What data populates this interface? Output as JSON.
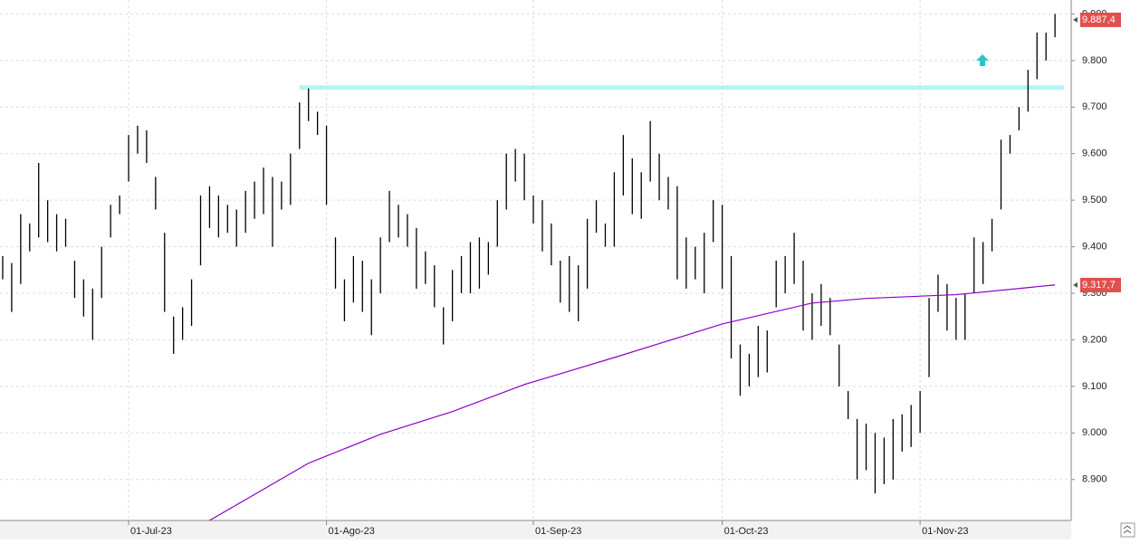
{
  "chart_data": {
    "type": "ohlc",
    "color": "#000000",
    "grid": true,
    "high": [
      9380,
      9365,
      9470,
      9450,
      9580,
      9500,
      9470,
      9460,
      9370,
      9330,
      9310,
      9400,
      9490,
      9510,
      9640,
      9660,
      9650,
      9550,
      9430,
      9250,
      9270,
      9330,
      9510,
      9530,
      9510,
      9490,
      9480,
      9520,
      9540,
      9570,
      9550,
      9540,
      9600,
      9710,
      9740,
      9690,
      9660,
      9420,
      9330,
      9380,
      9370,
      9330,
      9420,
      9520,
      9490,
      9470,
      9440,
      9390,
      9360,
      9270,
      9350,
      9380,
      9410,
      9420,
      9410,
      9500,
      9600,
      9610,
      9600,
      9510,
      9500,
      9450,
      9370,
      9380,
      9360,
      9460,
      9500,
      9450,
      9560,
      9640,
      9590,
      9560,
      9670,
      9600,
      9550,
      9530,
      9420,
      9400,
      9430,
      9500,
      9490,
      9380,
      9190,
      9170,
      9230,
      9220,
      9370,
      9380,
      9430,
      9370,
      9300,
      9320,
      9290,
      9190,
      9090,
      9030,
      9020,
      9000,
      8990,
      9030,
      9040,
      9060,
      9090,
      9290,
      9340,
      9320,
      9290,
      9300,
      9420,
      9410,
      9460,
      9630,
      9640,
      9700,
      9780,
      9860,
      9860,
      9900
    ],
    "low": [
      9330,
      9260,
      9320,
      9390,
      9420,
      9410,
      9390,
      9400,
      9290,
      9250,
      9200,
      9290,
      9420,
      9470,
      9540,
      9600,
      9580,
      9480,
      9260,
      9170,
      9200,
      9230,
      9360,
      9440,
      9420,
      9430,
      9400,
      9430,
      9460,
      9470,
      9400,
      9480,
      9490,
      9610,
      9670,
      9640,
      9490,
      9310,
      9240,
      9280,
      9260,
      9210,
      9300,
      9410,
      9420,
      9400,
      9310,
      9320,
      9270,
      9190,
      9240,
      9300,
      9300,
      9310,
      9340,
      9400,
      9480,
      9540,
      9500,
      9450,
      9390,
      9360,
      9280,
      9260,
      9240,
      9310,
      9430,
      9400,
      9400,
      9510,
      9470,
      9460,
      9540,
      9500,
      9480,
      9330,
      9310,
      9330,
      9300,
      9410,
      9310,
      9160,
      9080,
      9100,
      9120,
      9130,
      9270,
      9300,
      9320,
      9220,
      9200,
      9230,
      9210,
      9100,
      9030,
      8900,
      8920,
      8870,
      8890,
      8900,
      8960,
      8970,
      9000,
      9120,
      9260,
      9220,
      9200,
      9200,
      9300,
      9320,
      9390,
      9480,
      9600,
      9650,
      9690,
      9760,
      9800,
      9850
    ],
    "xlim": [
      -0.3,
      118.8
    ],
    "ylim": [
      8812,
      9930
    ],
    "yticks": [
      {
        "value": 8900,
        "label": "8.900"
      },
      {
        "value": 9000,
        "label": "9.000"
      },
      {
        "value": 9100,
        "label": "9.100"
      },
      {
        "value": 9200,
        "label": "9.200"
      },
      {
        "value": 9300,
        "label": "9.300"
      },
      {
        "value": 9400,
        "label": "9.400"
      },
      {
        "value": 9500,
        "label": "9.500"
      },
      {
        "value": 9600,
        "label": "9.600"
      },
      {
        "value": 9700,
        "label": "9.700"
      },
      {
        "value": 9800,
        "label": "9.800"
      },
      {
        "value": 9900,
        "label": "9.900"
      }
    ],
    "xticks": [
      {
        "value": 14,
        "label": "01-Jul-23"
      },
      {
        "value": 36,
        "label": "01-Ago-23"
      },
      {
        "value": 59,
        "label": "01-Sep-23"
      },
      {
        "value": 80,
        "label": "01-Oct-23"
      },
      {
        "value": 102,
        "label": "01-Nov-23"
      }
    ],
    "moving_average": {
      "color": "#8a00c8",
      "x": [
        23,
        34,
        42,
        50,
        58,
        68,
        80,
        90,
        96,
        106,
        117
      ],
      "values": [
        8812,
        8935,
        8997,
        9046,
        9104,
        9162,
        9234,
        9279,
        9289,
        9297,
        9318
      ]
    },
    "level_line": {
      "color": "#b8f2f4",
      "x": [
        33,
        118
      ],
      "value": 9742
    },
    "price_labels": [
      {
        "value": 9887.4,
        "label": "9.887,4",
        "color": "#e05050"
      },
      {
        "value": 9317.7,
        "label": "9.317,7",
        "color": "#e05050"
      }
    ]
  }
}
